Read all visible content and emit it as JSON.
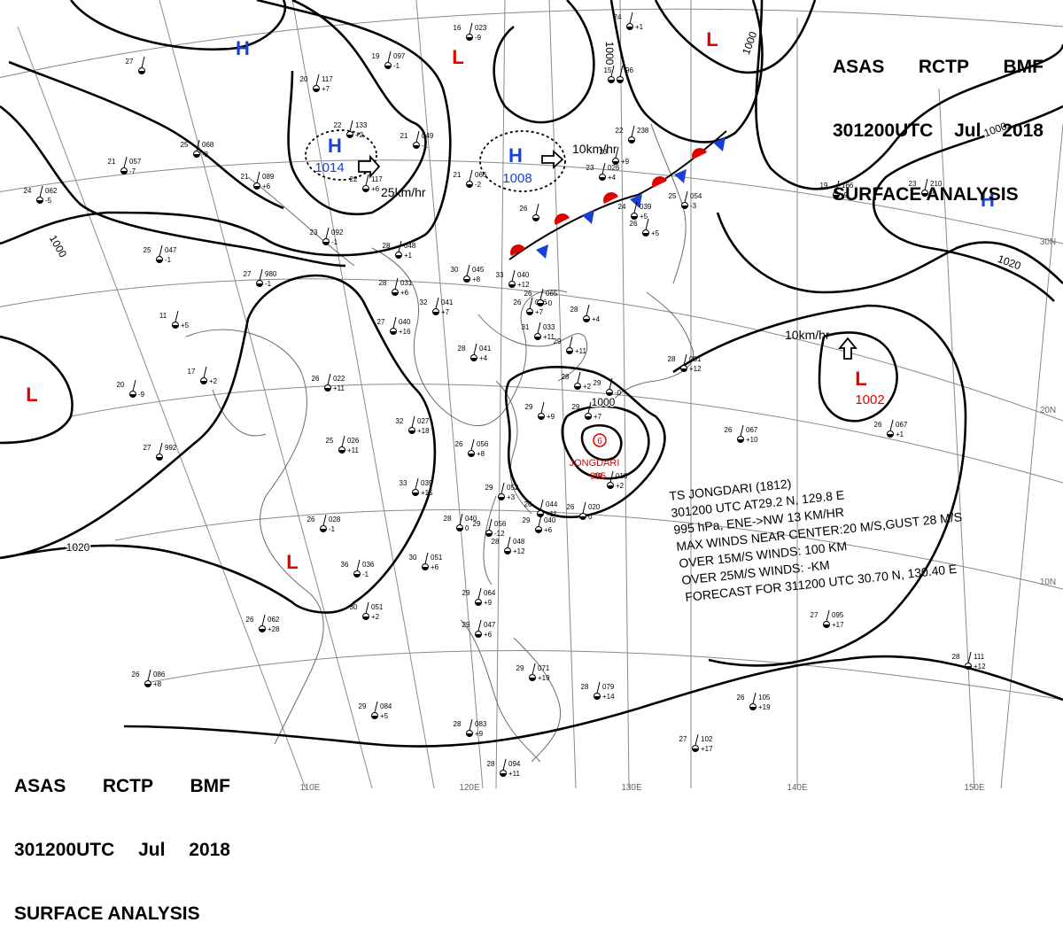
{
  "header_top": {
    "line1": [
      "ASAS",
      "RCTP",
      "BMF"
    ],
    "line2": [
      "301200UTC",
      "Jul",
      "2018"
    ],
    "line3": "SURFACE ANALYSIS"
  },
  "header_bottom": {
    "line1": [
      "ASAS",
      "RCTP",
      "BMF"
    ],
    "line2": [
      "301200UTC",
      "Jul",
      "2018"
    ],
    "line3": "SURFACE ANALYSIS"
  },
  "colors": {
    "high": "#1a3fd6",
    "low": "#e00000",
    "ink": "#000000",
    "grid": "#888888"
  },
  "grid_labels": {
    "lon": [
      "110E",
      "120E",
      "130E",
      "140E",
      "150E"
    ],
    "lat": [
      "30N",
      "20N",
      "10N"
    ]
  },
  "isobar_labels": [
    "1000",
    "1000",
    "1000",
    "1000",
    "1020",
    "1020",
    "1000"
  ],
  "pressure_centers": [
    {
      "type": "H",
      "value": ""
    },
    {
      "type": "H",
      "value": "1014"
    },
    {
      "type": "H",
      "value": "1008"
    },
    {
      "type": "H",
      "value": ""
    },
    {
      "type": "L",
      "value": ""
    },
    {
      "type": "L",
      "value": ""
    },
    {
      "type": "L",
      "value": "1002"
    },
    {
      "type": "L",
      "value": ""
    },
    {
      "type": "L",
      "value": ""
    }
  ],
  "motion_labels": [
    "25km/hr",
    "10km/hr",
    "10km/hr"
  ],
  "typhoon": {
    "name": "JONGDARI",
    "pressure": "995",
    "symbol": "6"
  },
  "storm_info": [
    "TS  JONGDARI  (1812)",
    "301200 UTC  AT29.2 N, 129.8 E",
    "995 hPa, ENE->NW  13 KM/HR",
    "MAX WINDS NEAR CENTER:20 M/S,GUST 28 M/S",
    "OVER 15M/S WINDS: 100 KM",
    "OVER 25M/S WINDS:  -KM",
    "FORECAST FOR 311200 UTC 30.70 N, 130.40 E"
  ],
  "stations": [
    {
      "t": "16",
      "p": "023",
      "d": "-9"
    },
    {
      "t": "19",
      "p": "097",
      "d": "-1"
    },
    {
      "t": "20",
      "p": "117",
      "d": "+7"
    },
    {
      "t": "22",
      "p": "133",
      "d": "+2"
    },
    {
      "t": "21",
      "p": "049",
      "d": "-1"
    },
    {
      "t": "25",
      "p": "068",
      "d": "-3"
    },
    {
      "t": "21",
      "p": "089",
      "d": "+6"
    },
    {
      "t": "21",
      "p": "057",
      "d": "-7"
    },
    {
      "t": "22",
      "p": "117",
      "d": "+6"
    },
    {
      "t": "21",
      "p": "066",
      "d": "-2"
    },
    {
      "t": "24",
      "p": "062",
      "d": "-5"
    },
    {
      "t": "23",
      "p": "092",
      "d": "-1"
    },
    {
      "t": "25",
      "p": "047",
      "d": "-1"
    },
    {
      "t": "28",
      "p": "048",
      "d": "+1"
    },
    {
      "t": "27",
      "p": "980",
      "d": "-1"
    },
    {
      "t": "30",
      "p": "045",
      "d": "+8"
    },
    {
      "t": "33",
      "p": "040",
      "d": "+12"
    },
    {
      "t": "28",
      "p": "031",
      "d": "+6"
    },
    {
      "t": "32",
      "p": "041",
      "d": "+7"
    },
    {
      "t": "26",
      "p": "056",
      "d": "+7"
    },
    {
      "t": "23",
      "p": "026",
      "d": "+4"
    },
    {
      "t": "24",
      "p": "039",
      "d": "+5"
    },
    {
      "t": "25",
      "p": "054",
      "d": "-3"
    },
    {
      "t": "26",
      "p": "065",
      "d": "-0"
    },
    {
      "t": "31",
      "p": "033",
      "d": "+11"
    },
    {
      "t": "27",
      "p": "040",
      "d": "+16"
    },
    {
      "t": "28",
      "p": "041",
      "d": "+4"
    },
    {
      "t": "11",
      "p": "",
      "d": "+5"
    },
    {
      "t": "20",
      "p": "",
      "d": "-9"
    },
    {
      "t": "17",
      "p": "",
      "d": "+2"
    },
    {
      "t": "26",
      "p": "022",
      "d": "+11"
    },
    {
      "t": "32",
      "p": "027",
      "d": "+18"
    },
    {
      "t": "25",
      "p": "026",
      "d": "+11"
    },
    {
      "t": "26",
      "p": "056",
      "d": "+8"
    },
    {
      "t": "27",
      "p": "992",
      "d": ""
    },
    {
      "t": "29",
      "p": "",
      "d": "+7"
    },
    {
      "t": "33",
      "p": "039",
      "d": "+15"
    },
    {
      "t": "26",
      "p": "028",
      "d": "-1"
    },
    {
      "t": "29",
      "p": "052",
      "d": "+3"
    },
    {
      "t": "29",
      "p": "056",
      "d": "-12"
    },
    {
      "t": "28",
      "p": "040",
      "d": "0"
    },
    {
      "t": "29",
      "p": "040",
      "d": "+6"
    },
    {
      "t": "26",
      "p": "020",
      "d": "0"
    },
    {
      "t": "29",
      "p": "018",
      "d": "+2"
    },
    {
      "t": "30",
      "p": "051",
      "d": "+6"
    },
    {
      "t": "36",
      "p": "036",
      "d": "-1"
    },
    {
      "t": "30",
      "p": "051",
      "d": "+2"
    },
    {
      "t": "26",
      "p": "062",
      "d": "+28"
    },
    {
      "t": "29",
      "p": "064",
      "d": "+9"
    },
    {
      "t": "29",
      "p": "047",
      "d": "+6"
    },
    {
      "t": "29",
      "p": "071",
      "d": "+19"
    },
    {
      "t": "28",
      "p": "079",
      "d": "+14"
    },
    {
      "t": "29",
      "p": "084",
      "d": "+5"
    },
    {
      "t": "26",
      "p": "086",
      "d": "+8"
    },
    {
      "t": "28",
      "p": "083",
      "d": "+9"
    },
    {
      "t": "28",
      "p": "094",
      "d": "+11"
    },
    {
      "t": "26",
      "p": "105",
      "d": "+19"
    },
    {
      "t": "27",
      "p": "102",
      "d": "+17"
    },
    {
      "t": "28",
      "p": "111",
      "d": "+12"
    },
    {
      "t": "27",
      "p": "095",
      "d": "+17"
    },
    {
      "t": "26",
      "p": "067",
      "d": "+10"
    },
    {
      "t": "26",
      "p": "067",
      "d": "+1"
    },
    {
      "t": "28",
      "p": "081",
      "d": "+12"
    },
    {
      "t": "28",
      "p": "",
      "d": "+2"
    },
    {
      "t": "29",
      "p": "",
      "d": "-0"
    },
    {
      "t": "19",
      "p": "166",
      "d": "-9"
    },
    {
      "t": "23",
      "p": "210",
      "d": "-5"
    },
    {
      "t": "26",
      "p": "",
      "d": ""
    },
    {
      "t": "22",
      "p": "238",
      "d": ""
    },
    {
      "t": "23",
      "p": "",
      "d": "+9"
    },
    {
      "t": "26",
      "p": "",
      "d": "+5"
    },
    {
      "t": "29",
      "p": "",
      "d": "+11"
    },
    {
      "t": "",
      "p": "",
      "d": ""
    },
    {
      "t": "28",
      "p": "048",
      "d": "+12"
    },
    {
      "t": "26",
      "p": "044",
      "d": "+11"
    },
    {
      "t": "29",
      "p": "",
      "d": "+9"
    },
    {
      "t": "28",
      "p": "",
      "d": "+4"
    },
    {
      "t": "24",
      "p": "",
      "d": "+1"
    },
    {
      "t": "15",
      "p": "96",
      "d": ""
    },
    {
      "t": "27",
      "p": "",
      "d": ""
    }
  ]
}
